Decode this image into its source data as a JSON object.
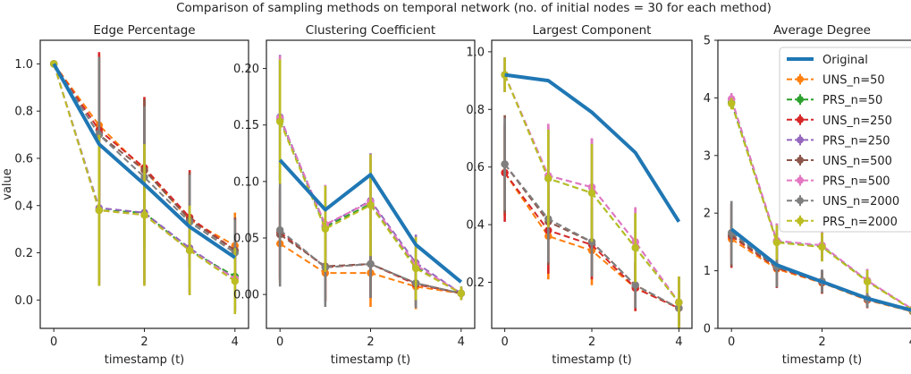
{
  "suptitle": "Comparison of sampling methods on temporal network (no. of initial nodes = 30 for each method)",
  "ylabel": "value",
  "legend_labels": [
    "Original",
    "UNS_n=50",
    "PRS_n=50",
    "UNS_n=250",
    "PRS_n=250",
    "UNS_n=500",
    "PRS_n=500",
    "UNS_n=2000",
    "PRS_n=2000"
  ],
  "colors": {
    "Original": "#1f77b4",
    "UNS_n=50": "#ff7f0e",
    "PRS_n=50": "#2ca02c",
    "UNS_n=250": "#d62728",
    "PRS_n=250": "#9467bd",
    "UNS_n=500": "#8c564b",
    "PRS_n=500": "#e377c2",
    "UNS_n=2000": "#7f7f7f",
    "PRS_n=2000": "#bcbd22"
  },
  "chart_data": [
    {
      "type": "line",
      "title": "Edge Percentage",
      "xlabel": "timestamp (t)",
      "ylabel": "value",
      "xlim": [
        -0.3,
        4.3
      ],
      "ylim": [
        -0.12,
        1.1
      ],
      "xticks": [
        0,
        2,
        4
      ],
      "yticks": [
        0.0,
        0.2,
        0.4,
        0.6,
        0.8,
        1.0
      ],
      "yticklabels": [
        "0.0",
        "0.2",
        "0.4",
        "0.6",
        "0.8",
        "1.0"
      ],
      "x": [
        0,
        1,
        2,
        3,
        4
      ],
      "series": [
        {
          "name": "Original",
          "values": [
            1.0,
            0.66,
            0.49,
            0.31,
            0.18
          ]
        },
        {
          "name": "UNS_n=50",
          "values": [
            1.0,
            0.74,
            0.55,
            0.34,
            0.23
          ],
          "err": [
            0,
            0.3,
            0.3,
            0.2,
            0.14
          ]
        },
        {
          "name": "PRS_n=50",
          "values": [
            1.0,
            0.38,
            0.37,
            0.21,
            0.1
          ],
          "err": [
            0,
            0.32,
            0.3,
            0.18,
            0.14
          ]
        },
        {
          "name": "UNS_n=250",
          "values": [
            1.0,
            0.72,
            0.56,
            0.35,
            0.21
          ],
          "err": [
            0,
            0.33,
            0.3,
            0.2,
            0.14
          ]
        },
        {
          "name": "PRS_n=250",
          "values": [
            1.0,
            0.39,
            0.37,
            0.22,
            0.09
          ],
          "err": [
            0,
            0.32,
            0.3,
            0.19,
            0.14
          ]
        },
        {
          "name": "UNS_n=500",
          "values": [
            1.0,
            0.7,
            0.55,
            0.34,
            0.21
          ],
          "err": [
            0,
            0.33,
            0.3,
            0.2,
            0.14
          ]
        },
        {
          "name": "PRS_n=500",
          "values": [
            1.0,
            0.38,
            0.36,
            0.21,
            0.09
          ],
          "err": [
            0,
            0.32,
            0.3,
            0.19,
            0.14
          ]
        },
        {
          "name": "UNS_n=2000",
          "values": [
            1.0,
            0.7,
            0.52,
            0.33,
            0.2
          ],
          "err": [
            0,
            0.33,
            0.3,
            0.2,
            0.14
          ]
        },
        {
          "name": "PRS_n=2000",
          "values": [
            1.0,
            0.38,
            0.36,
            0.21,
            0.08
          ],
          "err": [
            0,
            0.32,
            0.3,
            0.19,
            0.14
          ]
        }
      ]
    },
    {
      "type": "line",
      "title": "Clustering Coefficient",
      "xlabel": "timestamp (t)",
      "xlim": [
        -0.3,
        4.3
      ],
      "ylim": [
        -0.03,
        0.225
      ],
      "xticks": [
        0,
        2,
        4
      ],
      "yticks": [
        0.0,
        0.05,
        0.1,
        0.15,
        0.2
      ],
      "yticklabels": [
        "0.00",
        "0.05",
        "0.10",
        "0.15",
        "0.20"
      ],
      "x": [
        0,
        1,
        2,
        3,
        4
      ],
      "series": [
        {
          "name": "Original",
          "values": [
            0.119,
            0.075,
            0.106,
            0.044,
            0.011
          ]
        },
        {
          "name": "UNS_n=50",
          "values": [
            0.045,
            0.019,
            0.019,
            0.007,
            0.001
          ],
          "err": [
            0.035,
            0.025,
            0.03,
            0.02,
            0.005
          ]
        },
        {
          "name": "PRS_n=50",
          "values": [
            0.155,
            0.06,
            0.08,
            0.025,
            0.001
          ],
          "err": [
            0.055,
            0.035,
            0.04,
            0.025,
            0.006
          ]
        },
        {
          "name": "UNS_n=250",
          "values": [
            0.055,
            0.024,
            0.027,
            0.009,
            0.001
          ],
          "err": [
            0.04,
            0.03,
            0.03,
            0.02,
            0.005
          ]
        },
        {
          "name": "PRS_n=250",
          "values": [
            0.157,
            0.061,
            0.083,
            0.028,
            0.001
          ],
          "err": [
            0.055,
            0.035,
            0.042,
            0.025,
            0.006
          ]
        },
        {
          "name": "UNS_n=500",
          "values": [
            0.053,
            0.025,
            0.027,
            0.01,
            0.001
          ],
          "err": [
            0.04,
            0.03,
            0.03,
            0.02,
            0.005
          ]
        },
        {
          "name": "PRS_n=500",
          "values": [
            0.156,
            0.062,
            0.082,
            0.026,
            0.001
          ],
          "err": [
            0.055,
            0.035,
            0.042,
            0.025,
            0.006
          ]
        },
        {
          "name": "UNS_n=2000",
          "values": [
            0.057,
            0.024,
            0.027,
            0.01,
            0.001
          ],
          "err": [
            0.05,
            0.035,
            0.03,
            0.022,
            0.005
          ]
        },
        {
          "name": "PRS_n=2000",
          "values": [
            0.153,
            0.058,
            0.079,
            0.023,
            0.001
          ],
          "err": [
            0.055,
            0.038,
            0.045,
            0.028,
            0.006
          ]
        }
      ]
    },
    {
      "type": "line",
      "title": "Largest Component",
      "xlabel": "timestamp (t)",
      "xlim": [
        -0.3,
        4.3
      ],
      "ylim": [
        0.04,
        1.04
      ],
      "xticks": [
        0,
        2,
        4
      ],
      "yticks": [
        0.2,
        0.4,
        0.6,
        0.8,
        1.0
      ],
      "yticklabels": [
        "0.2",
        "0.4",
        "0.6",
        "0.8",
        "1.0"
      ],
      "x": [
        0,
        1,
        2,
        3,
        4
      ],
      "series": [
        {
          "name": "Original",
          "values": [
            0.92,
            0.9,
            0.79,
            0.65,
            0.41
          ]
        },
        {
          "name": "UNS_n=50",
          "values": [
            0.58,
            0.36,
            0.31,
            0.18,
            0.11
          ],
          "err": [
            0.15,
            0.15,
            0.12,
            0.08,
            0.06
          ]
        },
        {
          "name": "PRS_n=50",
          "values": [
            0.92,
            0.56,
            0.51,
            0.32,
            0.13
          ],
          "err": [
            0.06,
            0.17,
            0.17,
            0.12,
            0.09
          ]
        },
        {
          "name": "UNS_n=250",
          "values": [
            0.58,
            0.38,
            0.33,
            0.18,
            0.11
          ],
          "err": [
            0.17,
            0.15,
            0.12,
            0.08,
            0.06
          ]
        },
        {
          "name": "PRS_n=250",
          "values": [
            0.92,
            0.57,
            0.53,
            0.34,
            0.13
          ],
          "err": [
            0.06,
            0.17,
            0.17,
            0.12,
            0.09
          ]
        },
        {
          "name": "UNS_n=500",
          "values": [
            0.61,
            0.41,
            0.34,
            0.19,
            0.11
          ],
          "err": [
            0.17,
            0.15,
            0.12,
            0.08,
            0.06
          ]
        },
        {
          "name": "PRS_n=500",
          "values": [
            0.92,
            0.57,
            0.53,
            0.34,
            0.13
          ],
          "err": [
            0.06,
            0.18,
            0.17,
            0.12,
            0.09
          ]
        },
        {
          "name": "UNS_n=2000",
          "values": [
            0.61,
            0.42,
            0.34,
            0.19,
            0.11
          ],
          "err": [
            0.16,
            0.15,
            0.12,
            0.08,
            0.06
          ]
        },
        {
          "name": "PRS_n=2000",
          "values": [
            0.92,
            0.56,
            0.51,
            0.32,
            0.13
          ],
          "err": [
            0.06,
            0.17,
            0.17,
            0.12,
            0.09
          ]
        }
      ]
    },
    {
      "type": "line",
      "title": "Average Degree",
      "xlabel": "timestamp (t)",
      "xlim": [
        -0.3,
        4.3
      ],
      "ylim": [
        0,
        5
      ],
      "xticks": [
        0,
        2,
        4
      ],
      "yticks": [
        0,
        1,
        2,
        3,
        4,
        5
      ],
      "yticklabels": [
        "0",
        "1",
        "2",
        "3",
        "4",
        "5"
      ],
      "legend_position": "top-right",
      "x": [
        0,
        1,
        2,
        3,
        4
      ],
      "series": [
        {
          "name": "Original",
          "values": [
            1.72,
            1.1,
            0.81,
            0.52,
            0.31
          ]
        },
        {
          "name": "UNS_n=50",
          "values": [
            1.55,
            1.03,
            0.79,
            0.49,
            0.29
          ],
          "err": [
            0.35,
            0.3,
            0.18,
            0.12,
            0.1
          ]
        },
        {
          "name": "PRS_n=50",
          "values": [
            3.92,
            1.5,
            1.42,
            0.82,
            0.32
          ],
          "err": [
            0.1,
            0.3,
            0.25,
            0.2,
            0.15
          ]
        },
        {
          "name": "UNS_n=250",
          "values": [
            1.6,
            1.05,
            0.8,
            0.5,
            0.3
          ],
          "err": [
            0.55,
            0.35,
            0.2,
            0.15,
            0.12
          ]
        },
        {
          "name": "PRS_n=250",
          "values": [
            3.98,
            1.52,
            1.44,
            0.83,
            0.33
          ],
          "err": [
            0.1,
            0.3,
            0.25,
            0.2,
            0.15
          ]
        },
        {
          "name": "UNS_n=500",
          "values": [
            1.62,
            1.06,
            0.81,
            0.51,
            0.3
          ],
          "err": [
            0.55,
            0.35,
            0.2,
            0.15,
            0.12
          ]
        },
        {
          "name": "PRS_n=500",
          "values": [
            3.98,
            1.52,
            1.44,
            0.83,
            0.33
          ],
          "err": [
            0.1,
            0.3,
            0.25,
            0.2,
            0.15
          ]
        },
        {
          "name": "UNS_n=2000",
          "values": [
            1.66,
            1.07,
            0.82,
            0.51,
            0.3
          ],
          "err": [
            0.55,
            0.35,
            0.2,
            0.15,
            0.12
          ]
        },
        {
          "name": "PRS_n=2000",
          "values": [
            3.9,
            1.49,
            1.41,
            0.81,
            0.32
          ],
          "err": [
            0.1,
            0.3,
            0.25,
            0.2,
            0.15
          ]
        }
      ]
    }
  ]
}
